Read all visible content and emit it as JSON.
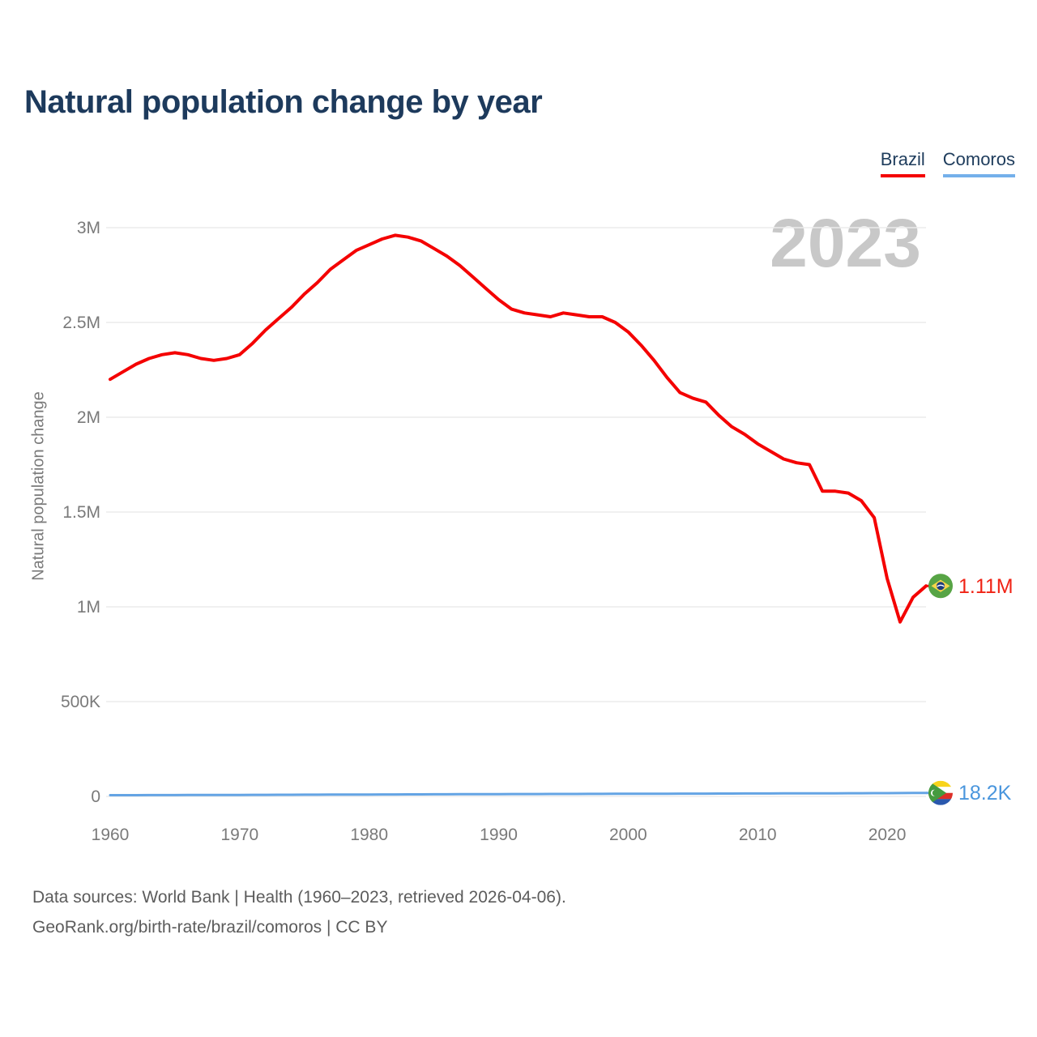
{
  "header": {
    "title": "Natural population change by year"
  },
  "legend": {
    "items": [
      {
        "label": "Brazil",
        "color": "#f40000"
      },
      {
        "label": "Comoros",
        "color": "#74b0ea"
      }
    ]
  },
  "watermark": {
    "text": "2023"
  },
  "chart_data": {
    "type": "line",
    "title": "Natural population change by year",
    "xlabel": "",
    "ylabel": "Natural population change",
    "ylim": [
      0,
      3000000
    ],
    "grid": "horizontal",
    "legend_position": "top-right",
    "x": [
      1960,
      1961,
      1962,
      1963,
      1964,
      1965,
      1966,
      1967,
      1968,
      1969,
      1970,
      1971,
      1972,
      1973,
      1974,
      1975,
      1976,
      1977,
      1978,
      1979,
      1980,
      1981,
      1982,
      1983,
      1984,
      1985,
      1986,
      1987,
      1988,
      1989,
      1990,
      1991,
      1992,
      1993,
      1994,
      1995,
      1996,
      1997,
      1998,
      1999,
      2000,
      2001,
      2002,
      2003,
      2004,
      2005,
      2006,
      2007,
      2008,
      2009,
      2010,
      2011,
      2012,
      2013,
      2014,
      2015,
      2016,
      2017,
      2018,
      2019,
      2020,
      2021,
      2022,
      2023
    ],
    "series": [
      {
        "name": "Brazil",
        "color": "#f40000",
        "label_color": "#f02315",
        "end_label": "1.11M",
        "stroke_width": 4,
        "values": [
          2200000,
          2240000,
          2280000,
          2310000,
          2330000,
          2340000,
          2330000,
          2310000,
          2300000,
          2310000,
          2330000,
          2390000,
          2460000,
          2520000,
          2580000,
          2650000,
          2710000,
          2780000,
          2830000,
          2880000,
          2910000,
          2940000,
          2960000,
          2950000,
          2930000,
          2890000,
          2850000,
          2800000,
          2740000,
          2680000,
          2620000,
          2570000,
          2550000,
          2540000,
          2530000,
          2550000,
          2540000,
          2530000,
          2530000,
          2500000,
          2450000,
          2380000,
          2300000,
          2210000,
          2130000,
          2100000,
          2080000,
          2010000,
          1950000,
          1910000,
          1860000,
          1820000,
          1780000,
          1760000,
          1750000,
          1610000,
          1610000,
          1600000,
          1560000,
          1470000,
          1150000,
          920000,
          1050000,
          1110000
        ]
      },
      {
        "name": "Comoros",
        "color": "#64a4e4",
        "label_color": "#4a96dd",
        "end_label": "18.2K",
        "stroke_width": 3,
        "values": [
          6200,
          6400,
          6500,
          6700,
          6900,
          7000,
          7200,
          7400,
          7500,
          7700,
          7900,
          8100,
          8300,
          8500,
          8700,
          8900,
          9100,
          9300,
          9500,
          9700,
          10000,
          10200,
          10400,
          10600,
          10800,
          11000,
          11200,
          11400,
          11600,
          11800,
          12000,
          12200,
          12400,
          12500,
          12700,
          12900,
          13000,
          13200,
          13400,
          13500,
          13700,
          13900,
          14000,
          14200,
          14400,
          14500,
          14700,
          14900,
          15000,
          15200,
          15400,
          15500,
          15700,
          15900,
          16000,
          16200,
          16400,
          16500,
          16700,
          16900,
          17100,
          17400,
          17800,
          18200
        ]
      }
    ],
    "yticks": [
      {
        "value": 0,
        "label": "0"
      },
      {
        "value": 500000,
        "label": "500K"
      },
      {
        "value": 1000000,
        "label": "1M"
      },
      {
        "value": 1500000,
        "label": "1.5M"
      },
      {
        "value": 2000000,
        "label": "2M"
      },
      {
        "value": 2500000,
        "label": "2.5M"
      },
      {
        "value": 3000000,
        "label": "3M"
      }
    ],
    "xticks": [
      1960,
      1970,
      1980,
      1990,
      2000,
      2010,
      2020
    ]
  },
  "colors": {
    "grid": "#ececec",
    "tick": "#7a7a7a",
    "title": "#1d3a5c",
    "watermark": "#c8c8c8",
    "footer": "#5c5c5c"
  },
  "footer": {
    "line1": "Data sources: World Bank | Health (1960–2023, retrieved 2026-04-06).",
    "line2": "GeoRank.org/birth-rate/brazil/comoros | CC BY"
  }
}
